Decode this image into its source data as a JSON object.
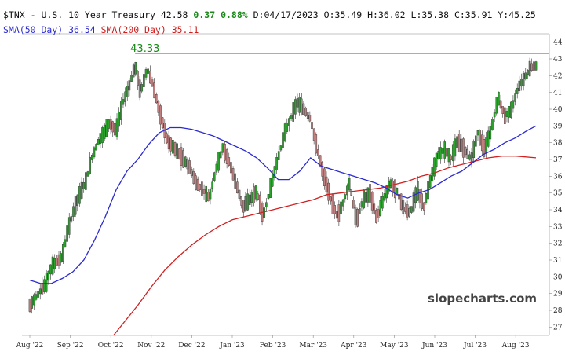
{
  "header": {
    "symbol": "$TNX",
    "sep": "-",
    "name": "U.S. 10 Year Treasury",
    "last": "42.58",
    "change": "0.37",
    "change_pct": "0.88%",
    "date_label": "D:",
    "date": "04/17/2023",
    "open_label": "O:",
    "open": "35.49",
    "high_label": "H:",
    "high": "36.02",
    "low_label": "L:",
    "low": "35.38",
    "close_label": "C:",
    "close": "35.91",
    "y_label": "Y:",
    "y": "45.25"
  },
  "indicators": {
    "sma50_label": "SMA(50 Day)",
    "sma50_value": "36.54",
    "sma200_label": "SMA(200 Day)",
    "sma200_value": "35.11"
  },
  "watermark": "slopecharts.com",
  "colors": {
    "up": "#2ca02c",
    "down": "#c08080",
    "sma50": "#2a2ad0",
    "sma200": "#d02020",
    "high_line": "#1a8a1a"
  },
  "chart_data": {
    "type": "candlestick",
    "ylim": [
      26.5,
      44.5
    ],
    "y_ticks": [
      27,
      28,
      29,
      30,
      31,
      32,
      33,
      34,
      35,
      36,
      37,
      38,
      39,
      40,
      41,
      42,
      43,
      44
    ],
    "x_ticks": [
      "Aug '22",
      "Sep '22",
      "Oct '22",
      "Nov '22",
      "Dec '22",
      "Jan '23",
      "Feb '23",
      "Mar '23",
      "Apr '23",
      "May '23",
      "Jun '23",
      "Jul '23",
      "Aug '23"
    ],
    "high_marker": {
      "value": 43.33,
      "label": "43.33"
    },
    "close_path": [
      [
        0,
        28.3
      ],
      [
        1.2,
        29.6
      ],
      [
        1.6,
        30.6
      ],
      [
        2.4,
        31.2
      ],
      [
        2.8,
        32.7
      ],
      [
        3.3,
        34.1
      ],
      [
        3.7,
        34.9
      ],
      [
        4.2,
        35.8
      ],
      [
        4.6,
        37.1
      ],
      [
        5.1,
        38.1
      ],
      [
        5.5,
        38.6
      ],
      [
        5.9,
        39.2
      ],
      [
        6.4,
        38.7
      ],
      [
        6.9,
        40.4
      ],
      [
        7.3,
        41.2
      ],
      [
        7.8,
        42.6
      ],
      [
        8.2,
        41.0
      ],
      [
        8.7,
        42.4
      ],
      [
        9.1,
        41.5
      ],
      [
        9.7,
        39.6
      ],
      [
        10.2,
        38.1
      ],
      [
        10.8,
        37.6
      ],
      [
        11.3,
        37.1
      ],
      [
        11.8,
        36.6
      ],
      [
        12.3,
        35.6
      ],
      [
        12.8,
        35.2
      ],
      [
        13.3,
        34.7
      ],
      [
        13.8,
        36.4
      ],
      [
        14.3,
        37.7
      ],
      [
        14.8,
        36.8
      ],
      [
        15.3,
        35.5
      ],
      [
        15.8,
        34.2
      ],
      [
        16.3,
        34.6
      ],
      [
        16.8,
        35.1
      ],
      [
        17.3,
        33.6
      ],
      [
        17.8,
        35.2
      ],
      [
        18.4,
        37.1
      ],
      [
        18.9,
        38.6
      ],
      [
        19.4,
        39.6
      ],
      [
        19.8,
        40.4
      ],
      [
        20.3,
        40.0
      ],
      [
        20.8,
        39.4
      ],
      [
        21.3,
        37.6
      ],
      [
        21.8,
        36.0
      ],
      [
        22.3,
        34.6
      ],
      [
        22.8,
        33.6
      ],
      [
        23.2,
        34.4
      ],
      [
        23.7,
        35.6
      ],
      [
        24.2,
        33.3
      ],
      [
        24.7,
        34.6
      ],
      [
        25.2,
        35.0
      ],
      [
        25.7,
        33.5
      ],
      [
        26.2,
        34.6
      ],
      [
        26.7,
        35.6
      ],
      [
        27.2,
        35.1
      ],
      [
        27.7,
        34.1
      ],
      [
        28.2,
        33.8
      ],
      [
        28.7,
        35.2
      ],
      [
        29.2,
        34.2
      ],
      [
        29.7,
        35.8
      ],
      [
        30.2,
        37.2
      ],
      [
        30.7,
        37.6
      ],
      [
        31.2,
        37.1
      ],
      [
        31.7,
        38.1
      ],
      [
        32.2,
        37.6
      ],
      [
        32.7,
        37.0
      ],
      [
        33.2,
        38.6
      ],
      [
        33.7,
        37.6
      ],
      [
        34.2,
        38.8
      ],
      [
        34.7,
        40.7
      ],
      [
        35.2,
        39.6
      ],
      [
        35.7,
        40.0
      ],
      [
        36.2,
        41.3
      ],
      [
        36.6,
        41.8
      ],
      [
        37.1,
        42.5
      ],
      [
        37.5,
        42.58
      ]
    ],
    "sma50_path": [
      [
        0,
        29.8
      ],
      [
        0.8,
        29.6
      ],
      [
        1.6,
        29.6
      ],
      [
        2.4,
        29.9
      ],
      [
        3.2,
        30.3
      ],
      [
        4.0,
        31.0
      ],
      [
        4.8,
        32.2
      ],
      [
        5.6,
        33.6
      ],
      [
        6.4,
        35.2
      ],
      [
        7.2,
        36.3
      ],
      [
        8.0,
        37.0
      ],
      [
        8.8,
        37.9
      ],
      [
        9.6,
        38.6
      ],
      [
        10.4,
        38.9
      ],
      [
        11.2,
        38.9
      ],
      [
        12.0,
        38.8
      ],
      [
        12.8,
        38.6
      ],
      [
        13.6,
        38.4
      ],
      [
        14.4,
        38.1
      ],
      [
        15.2,
        37.8
      ],
      [
        16.0,
        37.5
      ],
      [
        16.8,
        37.1
      ],
      [
        17.6,
        36.5
      ],
      [
        18.4,
        35.8
      ],
      [
        19.2,
        35.8
      ],
      [
        20.0,
        36.3
      ],
      [
        20.8,
        37.1
      ],
      [
        21.6,
        36.6
      ],
      [
        22.4,
        36.4
      ],
      [
        23.2,
        36.2
      ],
      [
        24.0,
        36.0
      ],
      [
        24.8,
        35.8
      ],
      [
        25.6,
        35.6
      ],
      [
        26.4,
        35.3
      ],
      [
        27.2,
        34.9
      ],
      [
        28.0,
        34.7
      ],
      [
        28.8,
        35.0
      ],
      [
        29.6,
        35.2
      ],
      [
        30.4,
        35.6
      ],
      [
        31.2,
        36.0
      ],
      [
        32.0,
        36.3
      ],
      [
        32.8,
        36.8
      ],
      [
        33.6,
        37.3
      ],
      [
        34.4,
        37.6
      ],
      [
        35.2,
        38.0
      ],
      [
        36.0,
        38.3
      ],
      [
        36.8,
        38.7
      ],
      [
        37.5,
        39.0
      ]
    ],
    "sma200_path": [
      [
        6.2,
        26.5
      ],
      [
        7.0,
        27.3
      ],
      [
        8.0,
        28.3
      ],
      [
        9.0,
        29.4
      ],
      [
        10.0,
        30.4
      ],
      [
        11.0,
        31.2
      ],
      [
        12.0,
        31.9
      ],
      [
        13.0,
        32.5
      ],
      [
        14.0,
        33.0
      ],
      [
        15.0,
        33.4
      ],
      [
        16.0,
        33.6
      ],
      [
        17.0,
        33.8
      ],
      [
        18.0,
        34.0
      ],
      [
        19.0,
        34.2
      ],
      [
        20.0,
        34.4
      ],
      [
        21.0,
        34.6
      ],
      [
        22.0,
        34.9
      ],
      [
        23.0,
        35.0
      ],
      [
        24.0,
        35.1
      ],
      [
        25.0,
        35.2
      ],
      [
        26.0,
        35.3
      ],
      [
        27.0,
        35.5
      ],
      [
        28.0,
        35.7
      ],
      [
        29.0,
        36.0
      ],
      [
        30.0,
        36.2
      ],
      [
        31.0,
        36.5
      ],
      [
        32.0,
        36.7
      ],
      [
        33.0,
        36.9
      ],
      [
        34.0,
        37.1
      ],
      [
        35.0,
        37.2
      ],
      [
        36.0,
        37.2
      ],
      [
        37.5,
        37.1
      ]
    ]
  }
}
